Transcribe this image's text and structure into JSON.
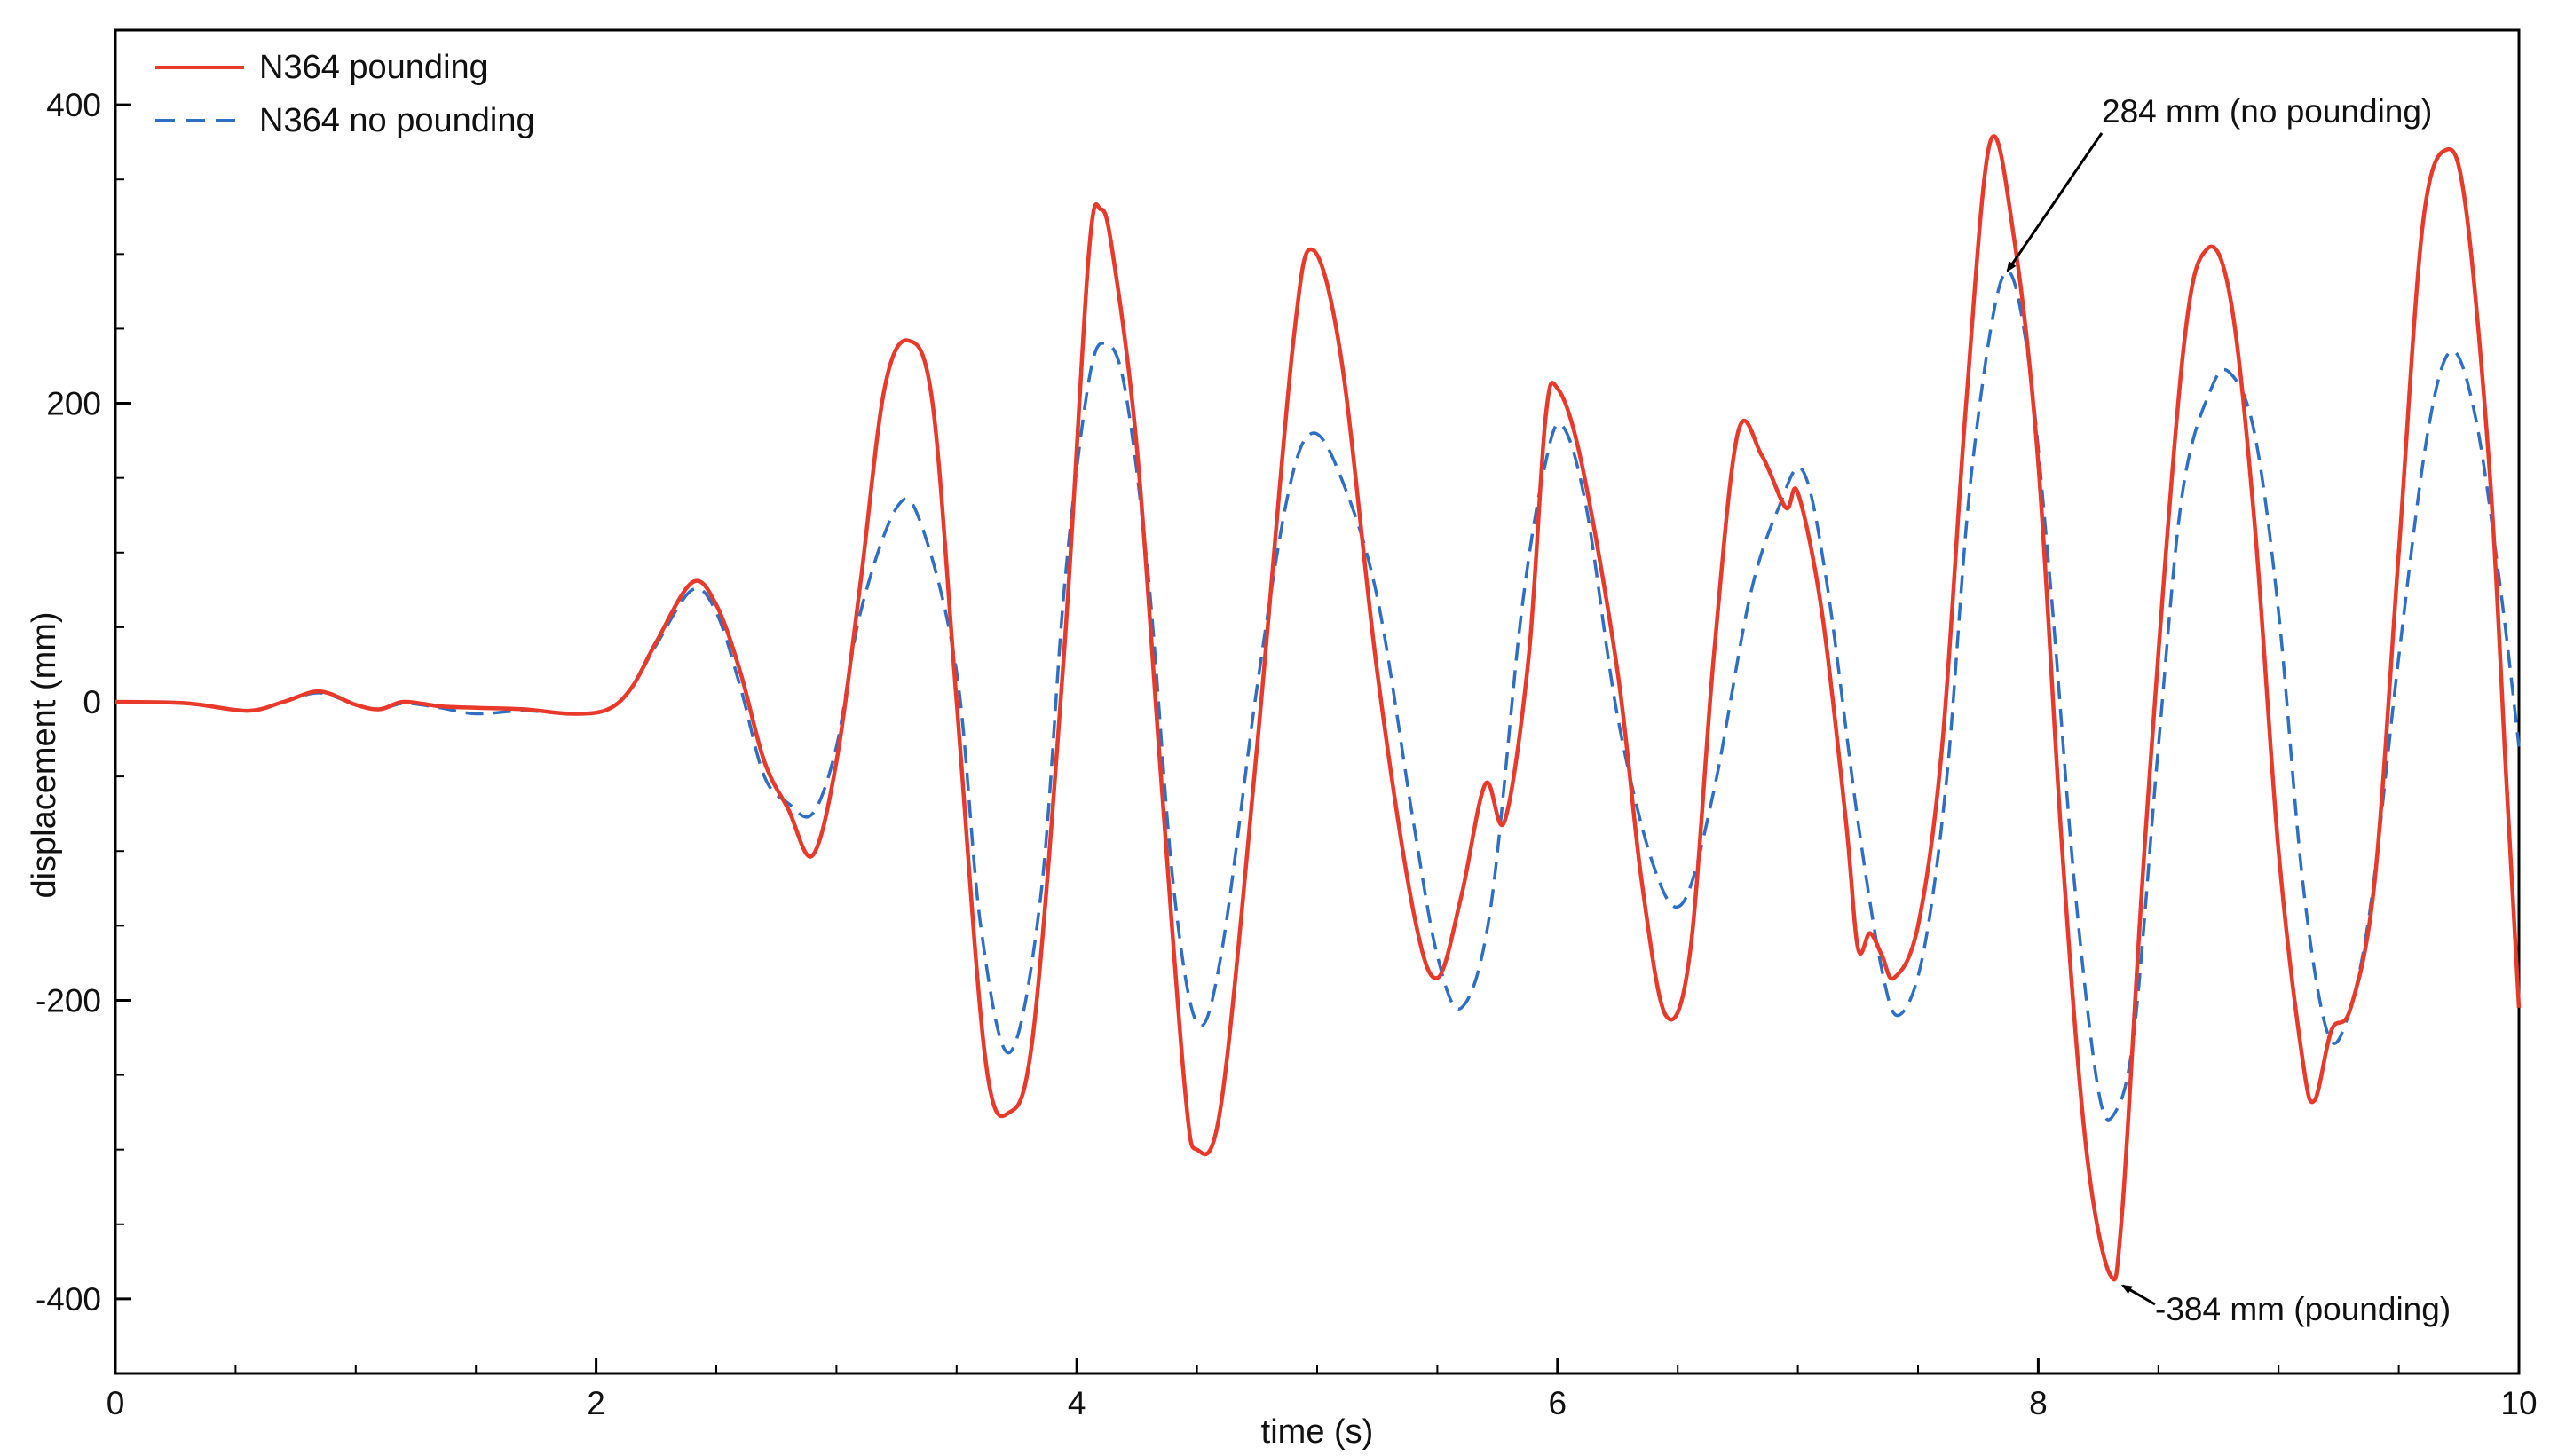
{
  "chart_data": {
    "type": "line",
    "xlabel": "time (s)",
    "ylabel": "displacement (mm)",
    "xlim": [
      0,
      10
    ],
    "ylim": [
      -450,
      450
    ],
    "x_ticks": [
      0,
      2,
      4,
      6,
      8,
      10
    ],
    "y_ticks": [
      -400,
      -200,
      0,
      200,
      400
    ],
    "grid": false,
    "legend_position": "top-left",
    "series": [
      {
        "name": "N364 pounding",
        "color": "#e8392b",
        "style": "solid",
        "points": [
          [
            0,
            0
          ],
          [
            0.3,
            -1
          ],
          [
            0.55,
            -6
          ],
          [
            0.7,
            0
          ],
          [
            0.85,
            7
          ],
          [
            1.0,
            -2
          ],
          [
            1.1,
            -5
          ],
          [
            1.2,
            0
          ],
          [
            1.35,
            -3
          ],
          [
            1.5,
            -4
          ],
          [
            1.7,
            -5
          ],
          [
            1.9,
            -8
          ],
          [
            2.05,
            -5
          ],
          [
            2.15,
            10
          ],
          [
            2.25,
            40
          ],
          [
            2.4,
            80
          ],
          [
            2.5,
            65
          ],
          [
            2.6,
            20
          ],
          [
            2.7,
            -40
          ],
          [
            2.8,
            -72
          ],
          [
            2.9,
            -103
          ],
          [
            3.0,
            -40
          ],
          [
            3.1,
            80
          ],
          [
            3.2,
            210
          ],
          [
            3.3,
            242
          ],
          [
            3.4,
            200
          ],
          [
            3.5,
            0
          ],
          [
            3.62,
            -240
          ],
          [
            3.72,
            -275
          ],
          [
            3.82,
            -220
          ],
          [
            3.95,
            40
          ],
          [
            4.05,
            300
          ],
          [
            4.1,
            330
          ],
          [
            4.15,
            300
          ],
          [
            4.25,
            170
          ],
          [
            4.35,
            -50
          ],
          [
            4.45,
            -260
          ],
          [
            4.5,
            -300
          ],
          [
            4.6,
            -270
          ],
          [
            4.75,
            -30
          ],
          [
            4.9,
            240
          ],
          [
            4.98,
            303
          ],
          [
            5.1,
            230
          ],
          [
            5.25,
            20
          ],
          [
            5.4,
            -140
          ],
          [
            5.5,
            -185
          ],
          [
            5.6,
            -130
          ],
          [
            5.7,
            -55
          ],
          [
            5.78,
            -80
          ],
          [
            5.88,
            30
          ],
          [
            5.95,
            190
          ],
          [
            6.0,
            210
          ],
          [
            6.1,
            160
          ],
          [
            6.25,
            20
          ],
          [
            6.35,
            -120
          ],
          [
            6.45,
            -210
          ],
          [
            6.55,
            -170
          ],
          [
            6.65,
            30
          ],
          [
            6.75,
            180
          ],
          [
            6.85,
            165
          ],
          [
            6.95,
            130
          ],
          [
            7.0,
            140
          ],
          [
            7.1,
            60
          ],
          [
            7.2,
            -80
          ],
          [
            7.25,
            -165
          ],
          [
            7.3,
            -155
          ],
          [
            7.35,
            -170
          ],
          [
            7.4,
            -185
          ],
          [
            7.5,
            -150
          ],
          [
            7.6,
            -30
          ],
          [
            7.7,
            200
          ],
          [
            7.8,
            375
          ],
          [
            7.9,
            310
          ],
          [
            8.0,
            160
          ],
          [
            8.1,
            -100
          ],
          [
            8.2,
            -300
          ],
          [
            8.3,
            -384
          ],
          [
            8.35,
            -340
          ],
          [
            8.45,
            -80
          ],
          [
            8.6,
            230
          ],
          [
            8.7,
            303
          ],
          [
            8.8,
            270
          ],
          [
            8.9,
            120
          ],
          [
            9.0,
            -100
          ],
          [
            9.1,
            -240
          ],
          [
            9.15,
            -267
          ],
          [
            9.22,
            -220
          ],
          [
            9.3,
            -205
          ],
          [
            9.4,
            -120
          ],
          [
            9.5,
            100
          ],
          [
            9.6,
            320
          ],
          [
            9.7,
            370
          ],
          [
            9.78,
            330
          ],
          [
            9.88,
            150
          ],
          [
            9.95,
            -60
          ],
          [
            10,
            -205
          ]
        ]
      },
      {
        "name": "N364 no pounding",
        "color": "#2e6fc4",
        "style": "dashed",
        "points": [
          [
            0,
            0
          ],
          [
            0.3,
            -1
          ],
          [
            0.55,
            -6
          ],
          [
            0.7,
            0
          ],
          [
            0.85,
            6
          ],
          [
            1.0,
            -2
          ],
          [
            1.1,
            -5
          ],
          [
            1.2,
            -1
          ],
          [
            1.35,
            -4
          ],
          [
            1.5,
            -8
          ],
          [
            1.7,
            -6
          ],
          [
            1.9,
            -8
          ],
          [
            2.05,
            -5
          ],
          [
            2.15,
            10
          ],
          [
            2.25,
            38
          ],
          [
            2.4,
            75
          ],
          [
            2.5,
            60
          ],
          [
            2.6,
            10
          ],
          [
            2.7,
            -50
          ],
          [
            2.8,
            -68
          ],
          [
            2.9,
            -75
          ],
          [
            3.0,
            -30
          ],
          [
            3.1,
            60
          ],
          [
            3.25,
            130
          ],
          [
            3.35,
            120
          ],
          [
            3.5,
            20
          ],
          [
            3.6,
            -150
          ],
          [
            3.72,
            -235
          ],
          [
            3.85,
            -130
          ],
          [
            3.95,
            80
          ],
          [
            4.05,
            215
          ],
          [
            4.12,
            240
          ],
          [
            4.2,
            210
          ],
          [
            4.3,
            80
          ],
          [
            4.4,
            -120
          ],
          [
            4.5,
            -215
          ],
          [
            4.6,
            -170
          ],
          [
            4.75,
            10
          ],
          [
            4.88,
            140
          ],
          [
            4.98,
            180
          ],
          [
            5.1,
            150
          ],
          [
            5.25,
            70
          ],
          [
            5.4,
            -80
          ],
          [
            5.5,
            -170
          ],
          [
            5.6,
            -205
          ],
          [
            5.72,
            -140
          ],
          [
            5.85,
            60
          ],
          [
            5.95,
            160
          ],
          [
            6.02,
            185
          ],
          [
            6.12,
            130
          ],
          [
            6.25,
            -10
          ],
          [
            6.4,
            -110
          ],
          [
            6.52,
            -135
          ],
          [
            6.65,
            -60
          ],
          [
            6.8,
            70
          ],
          [
            6.92,
            130
          ],
          [
            7.02,
            155
          ],
          [
            7.12,
            80
          ],
          [
            7.25,
            -80
          ],
          [
            7.35,
            -180
          ],
          [
            7.42,
            -210
          ],
          [
            7.52,
            -170
          ],
          [
            7.62,
            -50
          ],
          [
            7.72,
            150
          ],
          [
            7.85,
            284
          ],
          [
            7.95,
            240
          ],
          [
            8.05,
            80
          ],
          [
            8.15,
            -120
          ],
          [
            8.25,
            -260
          ],
          [
            8.32,
            -275
          ],
          [
            8.4,
            -220
          ],
          [
            8.5,
            -30
          ],
          [
            8.6,
            140
          ],
          [
            8.72,
            210
          ],
          [
            8.8,
            220
          ],
          [
            8.9,
            180
          ],
          [
            9.0,
            60
          ],
          [
            9.1,
            -120
          ],
          [
            9.2,
            -220
          ],
          [
            9.28,
            -215
          ],
          [
            9.38,
            -140
          ],
          [
            9.5,
            30
          ],
          [
            9.62,
            180
          ],
          [
            9.72,
            235
          ],
          [
            9.82,
            190
          ],
          [
            9.92,
            80
          ],
          [
            10,
            -30
          ]
        ]
      }
    ],
    "annotations": [
      {
        "text": "284 mm (no pounding)",
        "point": [
          7.85,
          284
        ]
      },
      {
        "text": "-384 mm (pounding)",
        "point": [
          8.3,
          -384
        ]
      }
    ]
  }
}
